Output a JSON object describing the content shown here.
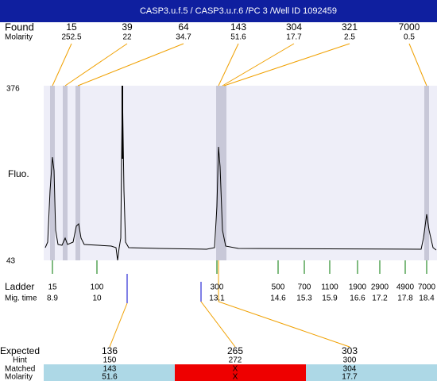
{
  "header": {
    "title": "CASP3.u.f.5 / CASP3.u.r.6 /PC 3 /Well ID 1092459"
  },
  "found": {
    "label": "Found",
    "molarity_label": "Molarity",
    "peaks": [
      {
        "size": 15,
        "molarity": 252.5
      },
      {
        "size": 39,
        "molarity": 22
      },
      {
        "size": 64,
        "molarity": 34.7
      },
      {
        "size": 143,
        "molarity": 51.6
      },
      {
        "size": 304,
        "molarity": 17.7
      },
      {
        "size": 321,
        "molarity": 2.5
      },
      {
        "size": 7000,
        "molarity": 0.5
      }
    ]
  },
  "plot": {
    "y_label": "Fluo.",
    "y_max": 376,
    "y_min": 43
  },
  "ladder": {
    "label": "Ladder",
    "time_label": "Mig. time",
    "bands": [
      {
        "size": 15,
        "time": 8.9
      },
      {
        "size": 100,
        "time": 10
      },
      {
        "size": 300,
        "time": 13.1
      },
      {
        "size": 500,
        "time": 14.6
      },
      {
        "size": 700,
        "time": 15.3
      },
      {
        "size": 1100,
        "time": 15.9
      },
      {
        "size": 1900,
        "time": 16.6
      },
      {
        "size": 2900,
        "time": 17.2
      },
      {
        "size": 4900,
        "time": 17.8
      },
      {
        "size": 7000,
        "time": 18.4
      }
    ]
  },
  "expected": {
    "label": "Expected",
    "hint_label": "Hint",
    "matched_label": "Matched",
    "molarity_label": "Molarity",
    "columns": [
      {
        "expected": 136,
        "hint": 150,
        "matched": 143,
        "molarity": 51.6
      },
      {
        "expected": 265,
        "hint": 272,
        "matched": "X",
        "molarity": "X"
      },
      {
        "expected": 303,
        "hint": 300,
        "matched": 304,
        "molarity": 17.7
      }
    ]
  }
}
